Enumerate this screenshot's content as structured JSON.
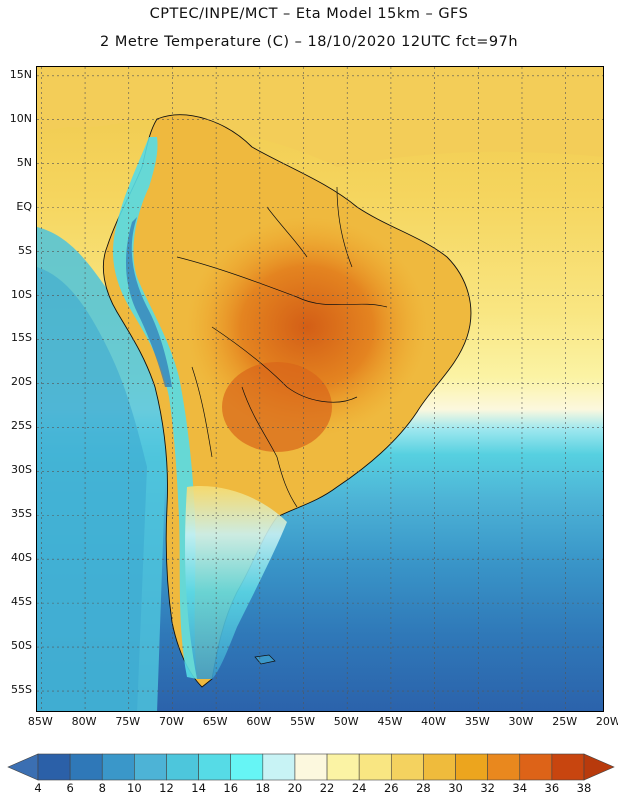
{
  "header": {
    "line1": "CPTEC/INPE/MCT –  Eta Model 15km – GFS",
    "line2": "2 Metre Temperature (C) – 18/10/2020 12UTC fct=97h"
  },
  "map": {
    "lat_labels": [
      "15N",
      "10N",
      "5N",
      "EQ",
      "5S",
      "10S",
      "15S",
      "20S",
      "25S",
      "30S",
      "35S",
      "40S",
      "45S",
      "50S",
      "55S"
    ],
    "lon_labels": [
      "85W",
      "80W",
      "75W",
      "70W",
      "65W",
      "60W",
      "55W",
      "50W",
      "45W",
      "40W",
      "35W",
      "30W",
      "25W",
      "20W"
    ],
    "lat_values": [
      15,
      10,
      5,
      0,
      -5,
      -10,
      -15,
      -20,
      -25,
      -30,
      -35,
      -40,
      -45,
      -50,
      -55
    ],
    "lon_values": [
      -85,
      -80,
      -75,
      -70,
      -65,
      -60,
      -55,
      -50,
      -45,
      -40,
      -35,
      -30,
      -25,
      -20
    ],
    "lat_range": [
      -57.5,
      16
    ],
    "lon_range": [
      -85.5,
      -20.5
    ]
  },
  "legend": {
    "labels": [
      "4",
      "6",
      "8",
      "10",
      "12",
      "14",
      "16",
      "18",
      "20",
      "22",
      "24",
      "26",
      "28",
      "30",
      "32",
      "34",
      "36",
      "38"
    ],
    "under_color": "#3b6fb2",
    "over_color": "#b83a0c",
    "colors": [
      "#2b60a8",
      "#2f78b8",
      "#3a97c9",
      "#4db3d6",
      "#4dc6dc",
      "#56dbe6",
      "#66f5f5",
      "#c8f3f5",
      "#fcf8de",
      "#fbf3a4",
      "#f9e682",
      "#f4d25f",
      "#efbb3c",
      "#eca51e",
      "#e9881e",
      "#dd6318",
      "#c8450f"
    ]
  }
}
